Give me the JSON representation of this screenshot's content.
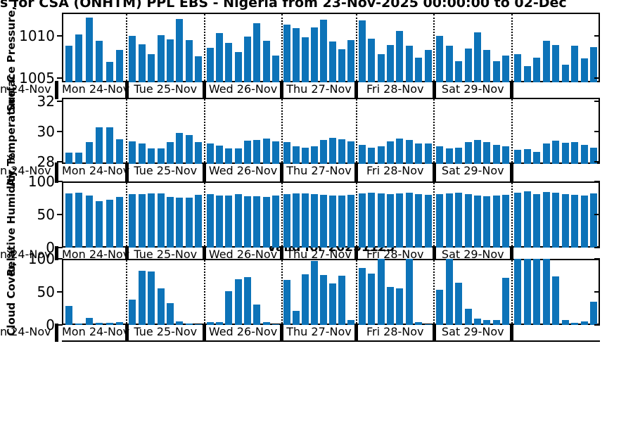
{
  "title": "s for CSA (ONHTM) PPL EBS  - Nigeria from 23-Nov-2025 00:00:00 to 02-Dec",
  "valid_label": "Valid for 20251125",
  "colors": {
    "bar": "#0d73b8",
    "axis": "#000000"
  },
  "x_axis": {
    "partial_left_label": "n 24-Nov",
    "day_labels": [
      "Mon 24-Nov",
      "Tue 25-Nov",
      "Wed 26-Nov",
      "Thu 27-Nov",
      "Fri 28-Nov",
      "Sat 29-Nov",
      ""
    ]
  },
  "chart_data": [
    {
      "type": "bar",
      "title": "",
      "ylabel": "Surface Pressure, mb",
      "yticks": [
        1005,
        1010
      ],
      "ylim": [
        1004.5,
        1012.75
      ],
      "grid": "dotted vertical day separators",
      "legend": "none",
      "x_note": "3-hourly values grouped by day, Mon 24-Nov through following Sun (last group unlabeled)",
      "series": [
        {
          "name": "Surface Pressure",
          "values_by_day": [
            [
              1008.8,
              1010.2,
              1012.2,
              1009.4,
              1006.9,
              1008.3
            ],
            [
              1010.0,
              1009.0,
              1007.8,
              1010.1,
              1009.6,
              1012.0,
              1009.5,
              1007.6
            ],
            [
              1008.6,
              1010.3,
              1009.2,
              1008.1,
              1009.9,
              1011.5,
              1009.4,
              1007.7
            ],
            [
              1011.3,
              1010.9,
              1009.8,
              1011.0,
              1011.9,
              1009.3,
              1008.4,
              1009.5
            ],
            [
              1011.8,
              1009.7,
              1007.8,
              1008.9,
              1010.6,
              1008.8,
              1007.4,
              1008.3
            ],
            [
              1010.0,
              1008.8,
              1007.0,
              1008.5,
              1010.4,
              1008.3,
              1007.0,
              1007.7
            ],
            [
              1007.8,
              1006.4,
              1007.4,
              1009.4,
              1008.9,
              1006.6,
              1008.8,
              1007.3,
              1008.7
            ]
          ]
        }
      ]
    },
    {
      "type": "bar",
      "title": "",
      "ylabel": "Air Temperature, C",
      "yticks": [
        28,
        30,
        32
      ],
      "ylim": [
        27.85,
        32.25
      ],
      "grid": "dotted vertical day separators",
      "legend": "none",
      "series": [
        {
          "name": "Air Temperature",
          "values_by_day": [
            [
              28.6,
              28.6,
              29.3,
              30.3,
              30.3,
              29.5
            ],
            [
              29.35,
              29.2,
              28.9,
              28.9,
              29.3,
              29.9,
              29.75,
              29.3
            ],
            [
              29.2,
              29.05,
              28.9,
              28.9,
              29.4,
              29.45,
              29.55,
              29.35
            ],
            [
              29.3,
              29.0,
              28.95,
              29.0,
              29.45,
              29.6,
              29.5,
              29.35
            ],
            [
              29.1,
              28.95,
              29.0,
              29.35,
              29.55,
              29.45,
              29.2,
              29.2
            ],
            [
              29.0,
              28.9,
              28.95,
              29.3,
              29.45,
              29.3,
              29.1,
              29.0
            ],
            [
              28.8,
              28.85,
              28.65,
              29.2,
              29.4,
              29.25,
              29.3,
              29.1,
              28.95
            ]
          ]
        }
      ]
    },
    {
      "type": "bar",
      "title": "",
      "ylabel": "Relative Humidity, %",
      "yticks": [
        0,
        50,
        100
      ],
      "ylim": [
        0,
        100
      ],
      "grid": "dotted vertical day separators",
      "legend": "none",
      "series": [
        {
          "name": "Relative Humidity",
          "values_by_day": [
            [
              82,
              83,
              79,
              70,
              72,
              77
            ],
            [
              81,
              81,
              82,
              82,
              77,
              76,
              76,
              80
            ],
            [
              81,
              79,
              79,
              81,
              78,
              78,
              77,
              79
            ],
            [
              81,
              82,
              82,
              81,
              80,
              79,
              79,
              80
            ],
            [
              82,
              83,
              82,
              81,
              82,
              83,
              81,
              80
            ],
            [
              81,
              82,
              83,
              81,
              79,
              78,
              79,
              80
            ],
            [
              83,
              85,
              81,
              84,
              83,
              81,
              80,
              79,
              82
            ]
          ]
        }
      ]
    },
    {
      "type": "bar",
      "title": "Valid for 20251125",
      "ylabel": "Cloud Cover, %",
      "yticks": [
        0,
        50,
        100
      ],
      "ylim": [
        0,
        100
      ],
      "grid": "dotted vertical day separators",
      "legend": "none",
      "series": [
        {
          "name": "Cloud Cover",
          "values_by_day": [
            [
              29,
              2,
              11,
              3,
              3,
              4
            ],
            [
              38,
              82,
              81,
              55,
              33,
              5,
              2,
              1
            ],
            [
              4,
              4,
              51,
              69,
              72,
              31,
              4,
              1
            ],
            [
              68,
              21,
              77,
              97,
              76,
              63,
              75,
              8
            ],
            [
              86,
              78,
              100,
              57,
              55,
              100,
              4,
              1
            ],
            [
              53,
              100,
              64,
              25,
              10,
              8,
              7,
              71
            ],
            [
              100,
              100,
              100,
              100,
              73,
              8,
              3,
              5,
              35
            ]
          ]
        }
      ]
    }
  ]
}
